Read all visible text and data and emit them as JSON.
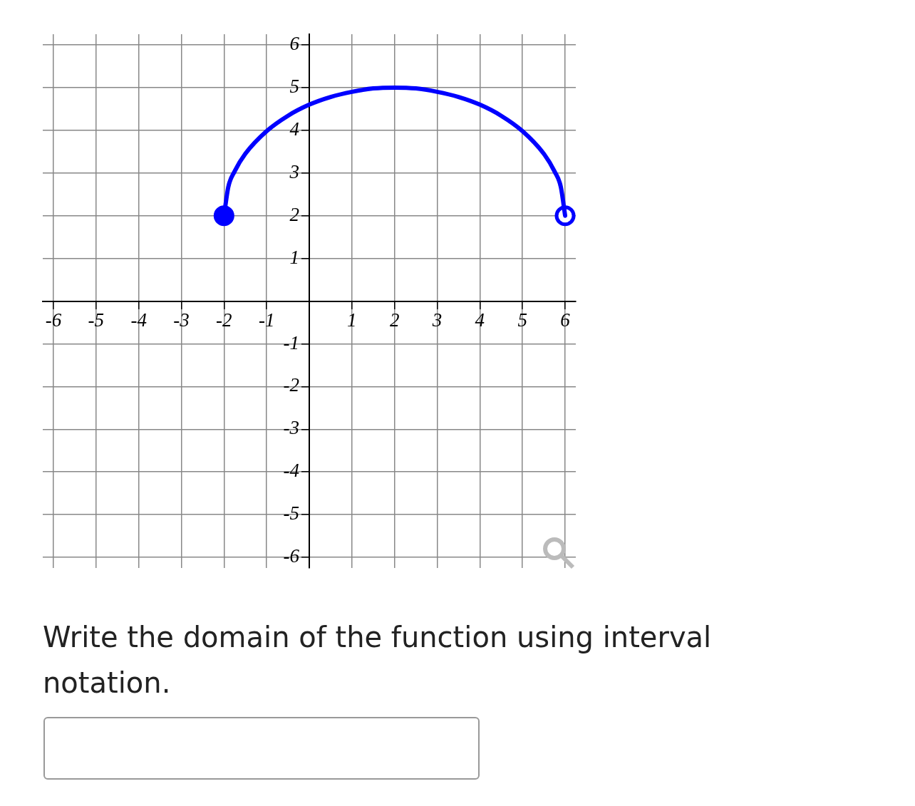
{
  "chart_data": {
    "type": "line",
    "xlim": [
      -6.25,
      6.25
    ],
    "ylim": [
      -6.25,
      6.25
    ],
    "xticks": [
      -6,
      -5,
      -4,
      -3,
      -2,
      -1,
      {
        "value": 0,
        "label": null
      },
      1,
      2,
      3,
      4,
      5,
      6
    ],
    "yticks": [
      -6,
      -5,
      -4,
      -3,
      -2,
      -1,
      {
        "value": 0,
        "label": null
      },
      1,
      2,
      3,
      4,
      5,
      6
    ],
    "grid": true,
    "legend": false,
    "marker": "none",
    "line_style": "solid",
    "series": [
      {
        "type": "line",
        "color": "#0000ff",
        "x": [
          -2,
          -1.9,
          -1.75,
          -1.5,
          -1,
          -0.5,
          0,
          0.5,
          1,
          1.5,
          2,
          2.5,
          3,
          3.5,
          4,
          4.5,
          5,
          5.5,
          5.75,
          5.9,
          6
        ],
        "values": [
          2,
          2.67,
          3.04,
          3.45,
          3.98,
          4.34,
          4.6,
          4.78,
          4.9,
          4.98,
          5,
          4.98,
          4.9,
          4.78,
          4.6,
          4.34,
          3.98,
          3.45,
          3.04,
          2.67,
          2
        ]
      },
      {
        "type": "scatter",
        "marker": "circle",
        "color": "#0000ff",
        "colors": [
          "#0000ff"
        ],
        "x": [
          -2
        ],
        "values": [
          2
        ]
      },
      {
        "type": "scatter",
        "marker": "circle",
        "color": "#0000ff",
        "colors": [
          "#ffffff"
        ],
        "x": [
          6
        ],
        "values": [
          2
        ]
      }
    ],
    "annotations": [
      "Write the domain of the function using interval notation."
    ]
  }
}
